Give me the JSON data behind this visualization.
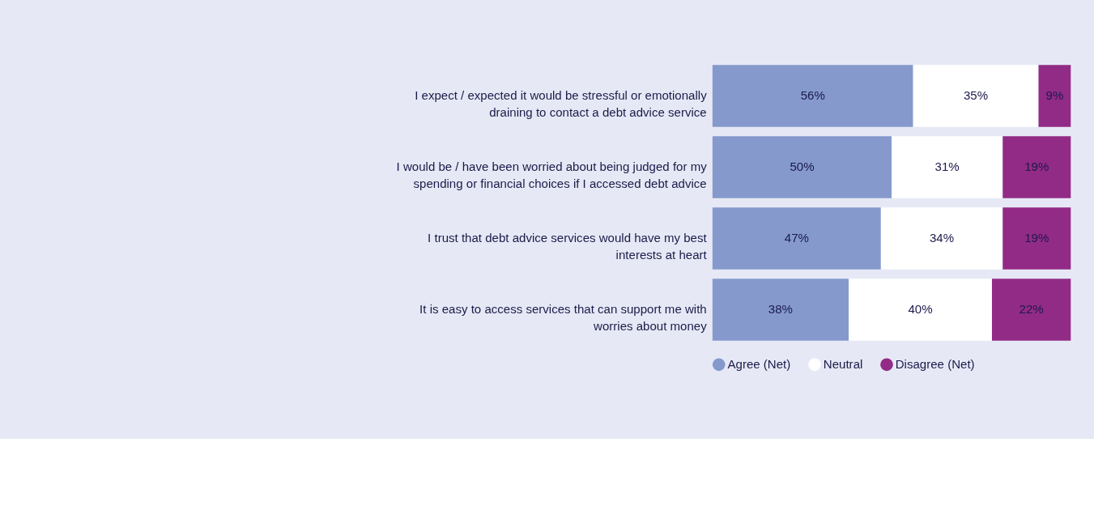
{
  "chart_data": {
    "type": "bar",
    "orientation": "horizontal",
    "stacked": true,
    "legend": "bottom",
    "tick_labels": "y",
    "grid": false,
    "categories": [
      "I expect / expected it would be stressful or emotionally draining to contact a debt advice service",
      "I would be / have been worried about being judged for my spending or financial choices if I accessed debt advice",
      "I trust that debt advice services would have my best interests at heart",
      "It is easy to access services that can support me with worries about money"
    ],
    "series": [
      {
        "name": "Agree (Net)",
        "color": "#8599cd",
        "values": [
          56,
          50,
          47,
          38
        ],
        "value_labels": [
          "56%",
          "50%",
          "47%",
          "38%"
        ]
      },
      {
        "name": "Neutral",
        "color": "#ffffff",
        "values": [
          35,
          31,
          34,
          40
        ],
        "value_labels": [
          "35%",
          "31%",
          "34%",
          "40%"
        ]
      },
      {
        "name": "Disagree (Net)",
        "color": "#922b86",
        "values": [
          9,
          19,
          19,
          22
        ],
        "value_labels": [
          "9%",
          "19%",
          "19%",
          "22%"
        ]
      }
    ]
  }
}
